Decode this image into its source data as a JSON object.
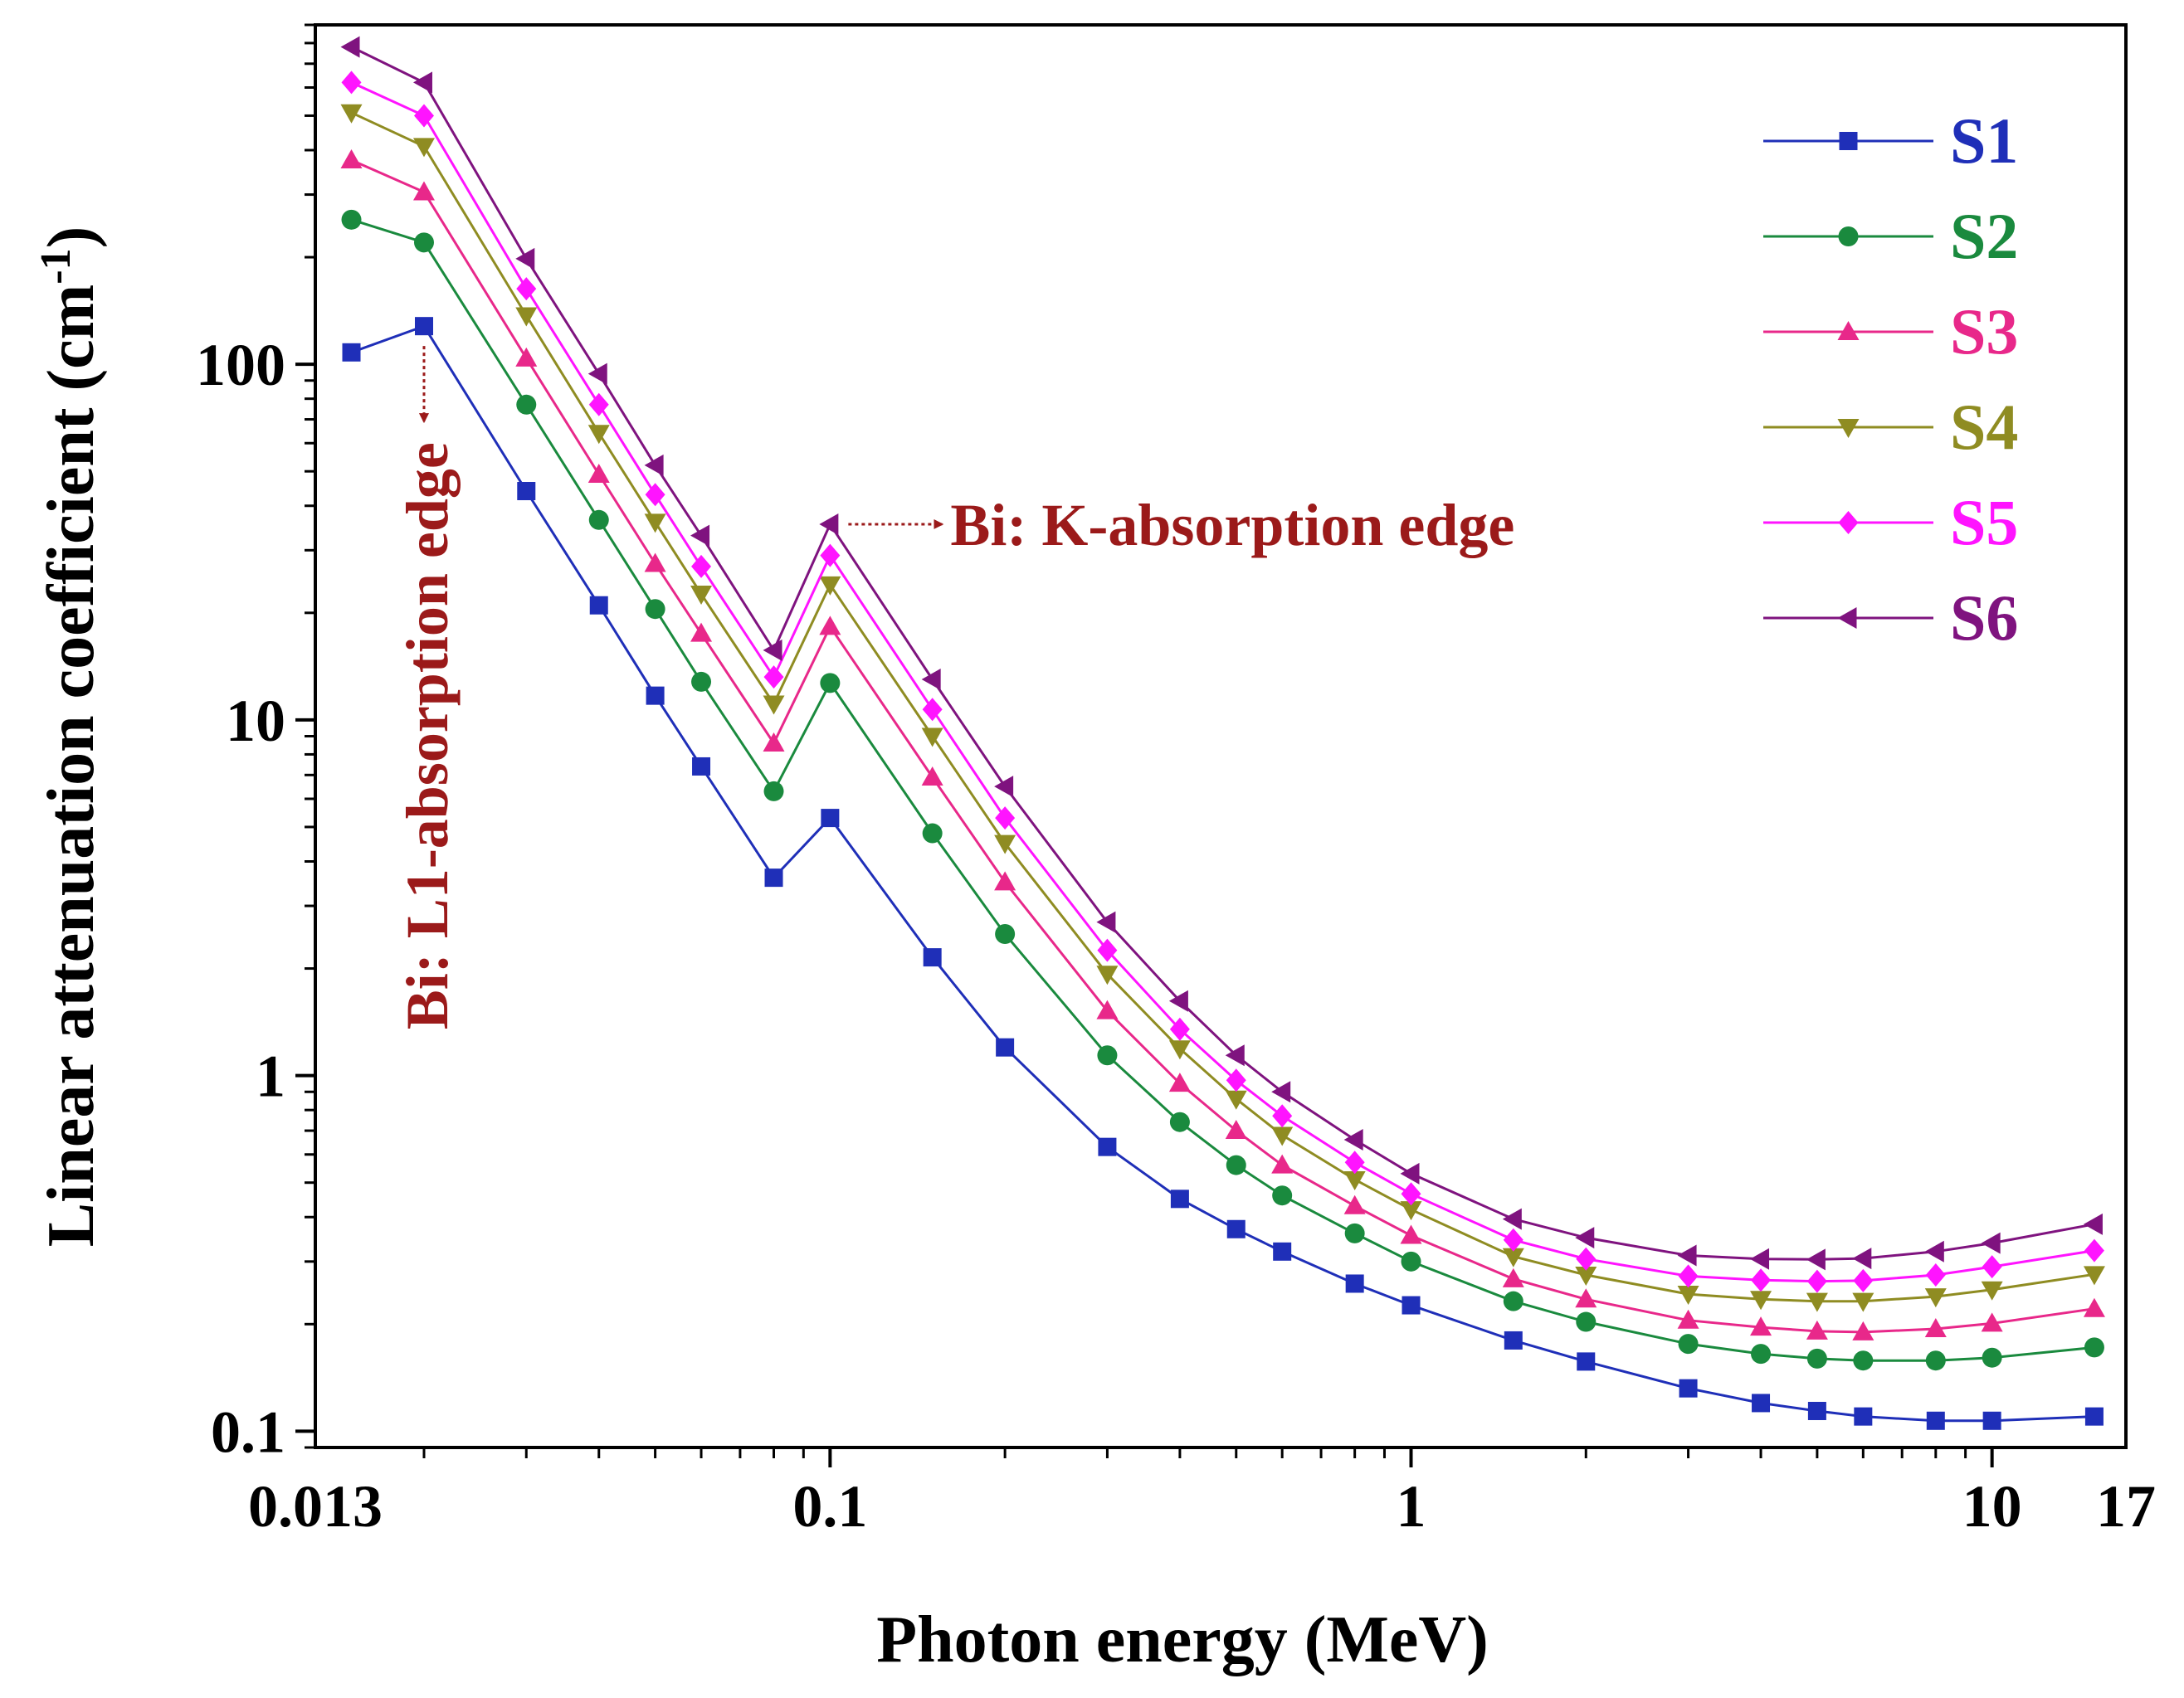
{
  "chart_data": {
    "type": "line",
    "x_scale": "log",
    "y_scale": "log",
    "xlabel": "Photon energy (MeV)",
    "ylabel_main": "Linear attenuation coefficient (cm",
    "ylabel_sup": "-1",
    "ylabel_close": ")",
    "xlim": [
      0.013,
      17
    ],
    "ylim": [
      0.09,
      900
    ],
    "x_ticks": [
      {
        "value": 0.013,
        "label": "0.013"
      },
      {
        "value": 0.1,
        "label": "0.1"
      },
      {
        "value": 1,
        "label": "1"
      },
      {
        "value": 10,
        "label": "10"
      },
      {
        "value": 17,
        "label": "17"
      }
    ],
    "y_ticks": [
      {
        "value": 0.1,
        "label": "0.1"
      },
      {
        "value": 1,
        "label": "1"
      },
      {
        "value": 10,
        "label": "10"
      },
      {
        "value": 100,
        "label": "100"
      }
    ],
    "x": [
      0.015,
      0.02,
      0.03,
      0.04,
      0.05,
      0.06,
      0.08,
      0.1,
      0.15,
      0.2,
      0.3,
      0.4,
      0.5,
      0.6,
      0.8,
      1,
      1.5,
      2,
      3,
      4,
      5,
      6,
      8,
      10,
      15
    ],
    "series": [
      {
        "name": "S1",
        "color": "#1f2fb8",
        "marker": "square",
        "values": [
          108,
          128,
          44,
          21,
          11.7,
          7.4,
          3.6,
          5.3,
          2.15,
          1.2,
          0.63,
          0.45,
          0.37,
          0.32,
          0.26,
          0.226,
          0.18,
          0.157,
          0.132,
          0.12,
          0.114,
          0.11,
          0.107,
          0.107,
          0.11
        ]
      },
      {
        "name": "S2",
        "color": "#1a8a3e",
        "marker": "circle",
        "values": [
          255,
          220,
          77,
          36.5,
          20.5,
          12.8,
          6.3,
          12.7,
          4.8,
          2.5,
          1.14,
          0.74,
          0.56,
          0.46,
          0.36,
          0.3,
          0.232,
          0.203,
          0.176,
          0.165,
          0.16,
          0.158,
          0.158,
          0.161,
          0.172
        ]
      },
      {
        "name": "S3",
        "color": "#e8288a",
        "marker": "triangle-up",
        "values": [
          375,
          305,
          104,
          49,
          27.5,
          17.5,
          8.6,
          18.3,
          6.9,
          3.5,
          1.52,
          0.95,
          0.7,
          0.56,
          0.43,
          0.355,
          0.268,
          0.235,
          0.205,
          0.196,
          0.191,
          0.19,
          0.194,
          0.201,
          0.221
        ]
      },
      {
        "name": "S4",
        "color": "#8f8c22",
        "marker": "triangle-down",
        "values": [
          510,
          410,
          137,
          64,
          36,
          22.6,
          11.1,
          24,
          9,
          4.5,
          1.93,
          1.19,
          0.86,
          0.68,
          0.51,
          0.42,
          0.31,
          0.275,
          0.243,
          0.235,
          0.232,
          0.232,
          0.239,
          0.25,
          0.276
        ]
      },
      {
        "name": "S5",
        "color": "#ff14ff",
        "marker": "diamond",
        "values": [
          620,
          500,
          163,
          77,
          43,
          27,
          13.2,
          29,
          10.7,
          5.3,
          2.25,
          1.35,
          0.97,
          0.77,
          0.57,
          0.465,
          0.345,
          0.305,
          0.273,
          0.266,
          0.264,
          0.265,
          0.275,
          0.29,
          0.322
        ]
      },
      {
        "name": "S6",
        "color": "#7f137f",
        "marker": "triangle-left",
        "values": [
          780,
          620,
          198,
          94,
          52,
          33,
          15.7,
          35.5,
          13,
          6.5,
          2.7,
          1.62,
          1.14,
          0.9,
          0.66,
          0.53,
          0.395,
          0.35,
          0.312,
          0.305,
          0.304,
          0.306,
          0.32,
          0.338,
          0.382
        ]
      }
    ],
    "legend_position": "top-right",
    "annotations": [
      {
        "text": "Bi: L1-absorption edge",
        "color": "#9b1a1a",
        "target_x": 0.02,
        "target_y": 128,
        "orientation": "vertical"
      },
      {
        "text": "Bi: K-absorption edge",
        "color": "#9b1a1a",
        "target_x": 0.1,
        "target_y": 35.5,
        "orientation": "horizontal"
      }
    ]
  }
}
